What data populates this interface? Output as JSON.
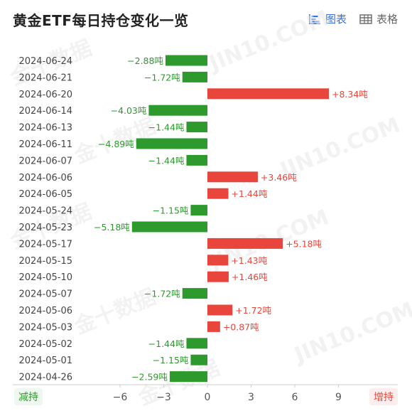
{
  "header": {
    "title": "黄金ETF每日持仓变化一览",
    "tab_chart": "图表",
    "tab_table": "表格"
  },
  "footer": {
    "left_label": "减持",
    "right_label": "增持"
  },
  "watermarks": [
    "金十数据",
    "JIN10.COM"
  ],
  "colors": {
    "positive": "#e8453c",
    "negative": "#2e9a2e",
    "accent": "#3a6fd8"
  },
  "chart_data": {
    "type": "bar",
    "orientation": "horizontal",
    "unit": "吨",
    "categories": [
      "2024-06-24",
      "2024-06-21",
      "2024-06-20",
      "2024-06-14",
      "2024-06-13",
      "2024-06-11",
      "2024-06-07",
      "2024-06-06",
      "2024-06-05",
      "2024-05-24",
      "2024-05-23",
      "2024-05-17",
      "2024-05-15",
      "2024-05-10",
      "2024-05-07",
      "2024-05-06",
      "2024-05-03",
      "2024-05-02",
      "2024-05-01",
      "2024-04-26"
    ],
    "values": [
      -2.88,
      -1.72,
      8.34,
      -4.03,
      -1.44,
      -4.89,
      -1.44,
      3.46,
      1.44,
      -1.15,
      -5.18,
      5.18,
      1.43,
      1.46,
      -1.72,
      1.72,
      0.87,
      -1.44,
      -1.15,
      -2.59
    ],
    "value_labels": [
      "−2.88吨",
      "−1.72吨",
      "+8.34吨",
      "−4.03吨",
      "−1.44吨",
      "−4.89吨",
      "−1.44吨",
      "+3.46吨",
      "+1.44吨",
      "−1.15吨",
      "−5.18吨",
      "+5.18吨",
      "+1.43吨",
      "+1.46吨",
      "−1.72吨",
      "+1.72吨",
      "+0.87吨",
      "−1.44吨",
      "−1.15吨",
      "−2.59吨"
    ],
    "xticks": [
      -6,
      -3,
      0,
      3,
      6,
      9
    ],
    "xtick_labels": [
      "−6",
      "−3",
      "0",
      "3",
      "6",
      "9"
    ],
    "xlim": [
      -6.9,
      12.2
    ],
    "grid": false
  }
}
